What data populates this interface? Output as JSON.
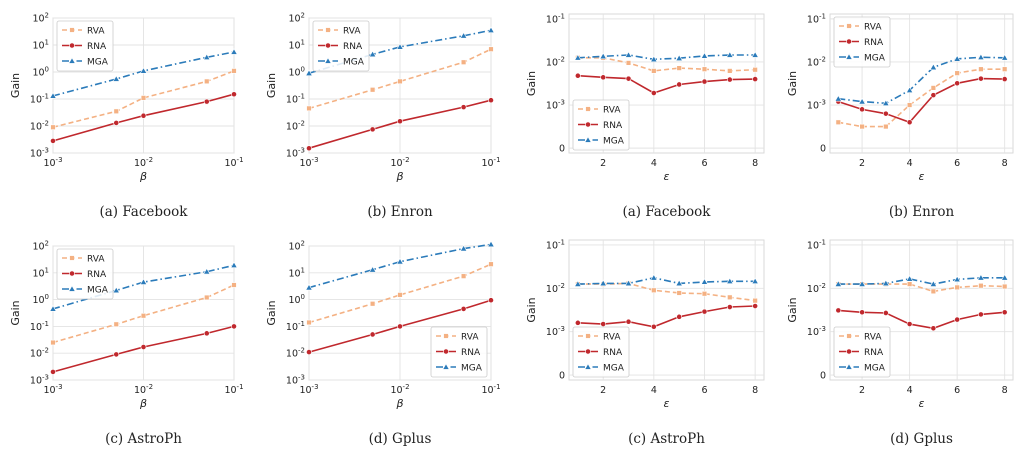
{
  "chart_data": [
    {
      "type": "line",
      "caption": "(a) Facebook",
      "xscale": "log",
      "yscale": "log",
      "xlabel": "β",
      "ylabel": "Gain",
      "ylim": [
        0.001,
        100
      ],
      "xlim": [
        0.001,
        0.1
      ],
      "grid": true,
      "legend_position": "top-left",
      "xticks": [
        "10^-3",
        "10^-2",
        "10^-1"
      ],
      "yticks": [
        "10^-3",
        "10^-2",
        "10^-1",
        "10^0",
        "10^1",
        "10^2"
      ],
      "x": [
        0.001,
        0.005,
        0.01,
        0.05,
        0.1
      ],
      "series": [
        {
          "name": "RVA",
          "values": [
            0.009,
            0.035,
            0.11,
            0.45,
            1.1
          ]
        },
        {
          "name": "RNA",
          "values": [
            0.0028,
            0.013,
            0.024,
            0.08,
            0.15
          ]
        },
        {
          "name": "MGA",
          "values": [
            0.13,
            0.55,
            1.1,
            3.5,
            5.5
          ]
        }
      ]
    },
    {
      "type": "line",
      "caption": "(b) Enron",
      "xscale": "log",
      "yscale": "log",
      "xlabel": "β",
      "ylabel": "Gain",
      "ylim": [
        0.001,
        100
      ],
      "xlim": [
        0.001,
        0.1
      ],
      "grid": true,
      "legend_position": "top-left",
      "xticks": [
        "10^-3",
        "10^-2",
        "10^-1"
      ],
      "yticks": [
        "10^-3",
        "10^-2",
        "10^-1",
        "10^0",
        "10^1",
        "10^2"
      ],
      "x": [
        0.001,
        0.005,
        0.01,
        0.05,
        0.1
      ],
      "series": [
        {
          "name": "RVA",
          "values": [
            0.045,
            0.22,
            0.45,
            2.3,
            7
          ]
        },
        {
          "name": "RNA",
          "values": [
            0.0015,
            0.0075,
            0.015,
            0.05,
            0.09
          ]
        },
        {
          "name": "MGA",
          "values": [
            0.9,
            4.5,
            8.5,
            22,
            35
          ]
        }
      ]
    },
    {
      "type": "line",
      "caption": "(a) Facebook",
      "xscale": "linear",
      "yscale": "symlog",
      "xlabel": "ε",
      "ylabel": "Gain",
      "ylim": [
        0,
        0.1
      ],
      "xlim": [
        0.65,
        8.35
      ],
      "grid": true,
      "legend_position": "bottom-left",
      "xticks": [
        "2",
        "4",
        "6",
        "8"
      ],
      "yticks": [
        "0",
        "10^-3",
        "10^-2",
        "10^-1"
      ],
      "x": [
        1,
        2,
        3,
        4,
        5,
        6,
        7,
        8
      ],
      "series": [
        {
          "name": "RVA",
          "values": [
            0.0125,
            0.0125,
            0.0095,
            0.0062,
            0.0072,
            0.0068,
            0.0062,
            0.0066
          ]
        },
        {
          "name": "RNA",
          "values": [
            0.0048,
            0.0044,
            0.0041,
            0.0019,
            0.003,
            0.0035,
            0.0039,
            0.004
          ]
        },
        {
          "name": "MGA",
          "values": [
            0.0125,
            0.0135,
            0.0145,
            0.0115,
            0.0122,
            0.0138,
            0.0145,
            0.0145
          ]
        }
      ]
    },
    {
      "type": "line",
      "caption": "(b) Enron",
      "xscale": "linear",
      "yscale": "symlog",
      "xlabel": "ε",
      "ylabel": "Gain",
      "ylim": [
        0,
        0.1
      ],
      "xlim": [
        0.65,
        8.35
      ],
      "grid": true,
      "legend_position": "top-left",
      "xticks": [
        "2",
        "4",
        "6",
        "8"
      ],
      "yticks": [
        "0",
        "10^-3",
        "10^-2",
        "10^-1"
      ],
      "x": [
        1,
        2,
        3,
        4,
        5,
        6,
        7,
        8
      ],
      "series": [
        {
          "name": "RVA",
          "values": [
            0.0006,
            0.0005,
            0.0005,
            0.001,
            0.0025,
            0.0055,
            0.0068,
            0.0068
          ]
        },
        {
          "name": "RNA",
          "values": [
            0.0012,
            0.0009,
            0.0008,
            0.0006,
            0.0017,
            0.0032,
            0.0041,
            0.004
          ]
        },
        {
          "name": "MGA",
          "values": [
            0.0014,
            0.0012,
            0.0011,
            0.0022,
            0.0075,
            0.0118,
            0.0128,
            0.0125
          ]
        }
      ]
    },
    {
      "type": "line",
      "caption": "(c) AstroPh",
      "xscale": "log",
      "yscale": "log",
      "xlabel": "β",
      "ylabel": "Gain",
      "ylim": [
        0.001,
        100
      ],
      "xlim": [
        0.001,
        0.1
      ],
      "grid": true,
      "legend_position": "top-left",
      "xticks": [
        "10^-3",
        "10^-2",
        "10^-1"
      ],
      "yticks": [
        "10^-3",
        "10^-2",
        "10^-1",
        "10^0",
        "10^1",
        "10^2"
      ],
      "x": [
        0.001,
        0.005,
        0.01,
        0.05,
        0.1
      ],
      "series": [
        {
          "name": "RVA",
          "values": [
            0.025,
            0.12,
            0.25,
            1.2,
            3.5
          ]
        },
        {
          "name": "RNA",
          "values": [
            0.002,
            0.009,
            0.017,
            0.055,
            0.1
          ]
        },
        {
          "name": "MGA",
          "values": [
            0.45,
            2.2,
            4.5,
            11,
            19
          ]
        }
      ]
    },
    {
      "type": "line",
      "caption": "(d) Gplus",
      "xscale": "log",
      "yscale": "log",
      "xlabel": "β",
      "ylabel": "Gain",
      "ylim": [
        0.001,
        100
      ],
      "xlim": [
        0.001,
        0.1
      ],
      "grid": true,
      "legend_position": "bottom-right",
      "xticks": [
        "10^-3",
        "10^-2",
        "10^-1"
      ],
      "yticks": [
        "10^-3",
        "10^-2",
        "10^-1",
        "10^0",
        "10^1",
        "10^2"
      ],
      "x": [
        0.001,
        0.005,
        0.01,
        0.05,
        0.1
      ],
      "series": [
        {
          "name": "RVA",
          "values": [
            0.14,
            0.7,
            1.5,
            7.5,
            21
          ]
        },
        {
          "name": "RNA",
          "values": [
            0.011,
            0.05,
            0.1,
            0.45,
            0.95
          ]
        },
        {
          "name": "MGA",
          "values": [
            2.8,
            13,
            26,
            80,
            115
          ]
        }
      ]
    },
    {
      "type": "line",
      "caption": "(c) AstroPh",
      "xscale": "linear",
      "yscale": "symlog",
      "xlabel": "ε",
      "ylabel": "Gain",
      "ylim": [
        0,
        0.1
      ],
      "xlim": [
        0.65,
        8.35
      ],
      "grid": true,
      "legend_position": "bottom-left",
      "xticks": [
        "2",
        "4",
        "6",
        "8"
      ],
      "yticks": [
        "0",
        "10^-3",
        "10^-2",
        "10^-1"
      ],
      "x": [
        1,
        2,
        3,
        4,
        5,
        6,
        7,
        8
      ],
      "series": [
        {
          "name": "RVA",
          "values": [
            0.0125,
            0.0125,
            0.013,
            0.009,
            0.0078,
            0.0075,
            0.0062,
            0.0052
          ]
        },
        {
          "name": "RNA",
          "values": [
            0.0016,
            0.0015,
            0.0017,
            0.0013,
            0.0022,
            0.0029,
            0.0037,
            0.0039
          ]
        },
        {
          "name": "MGA",
          "values": [
            0.0125,
            0.013,
            0.013,
            0.0175,
            0.013,
            0.014,
            0.0145,
            0.0145
          ]
        }
      ]
    },
    {
      "type": "line",
      "caption": "(d) Gplus",
      "xscale": "linear",
      "yscale": "symlog",
      "xlabel": "ε",
      "ylabel": "Gain",
      "ylim": [
        0,
        0.1
      ],
      "xlim": [
        0.65,
        8.35
      ],
      "grid": true,
      "legend_position": "bottom-left",
      "xticks": [
        "2",
        "4",
        "6",
        "8"
      ],
      "yticks": [
        "0",
        "10^-3",
        "10^-2",
        "10^-1"
      ],
      "x": [
        1,
        2,
        3,
        4,
        5,
        6,
        7,
        8
      ],
      "series": [
        {
          "name": "RVA",
          "values": [
            0.0125,
            0.0125,
            0.0125,
            0.0125,
            0.0085,
            0.0105,
            0.0115,
            0.011
          ]
        },
        {
          "name": "RNA",
          "values": [
            0.0031,
            0.0028,
            0.0027,
            0.0015,
            0.0012,
            0.0019,
            0.0025,
            0.0028
          ]
        },
        {
          "name": "MGA",
          "values": [
            0.0125,
            0.0125,
            0.013,
            0.0165,
            0.0125,
            0.016,
            0.0175,
            0.0175
          ]
        }
      ]
    }
  ],
  "series_styles": {
    "RVA": {
      "color": "#f4b183",
      "dash": "5,3",
      "marker": "square"
    },
    "RNA": {
      "color": "#c0282d",
      "dash": "",
      "marker": "circle"
    },
    "MGA": {
      "color": "#2b7bba",
      "dash": "7,3,1.5,3",
      "marker": "triangle"
    }
  },
  "legend_labels": [
    "RVA",
    "RNA",
    "MGA"
  ]
}
